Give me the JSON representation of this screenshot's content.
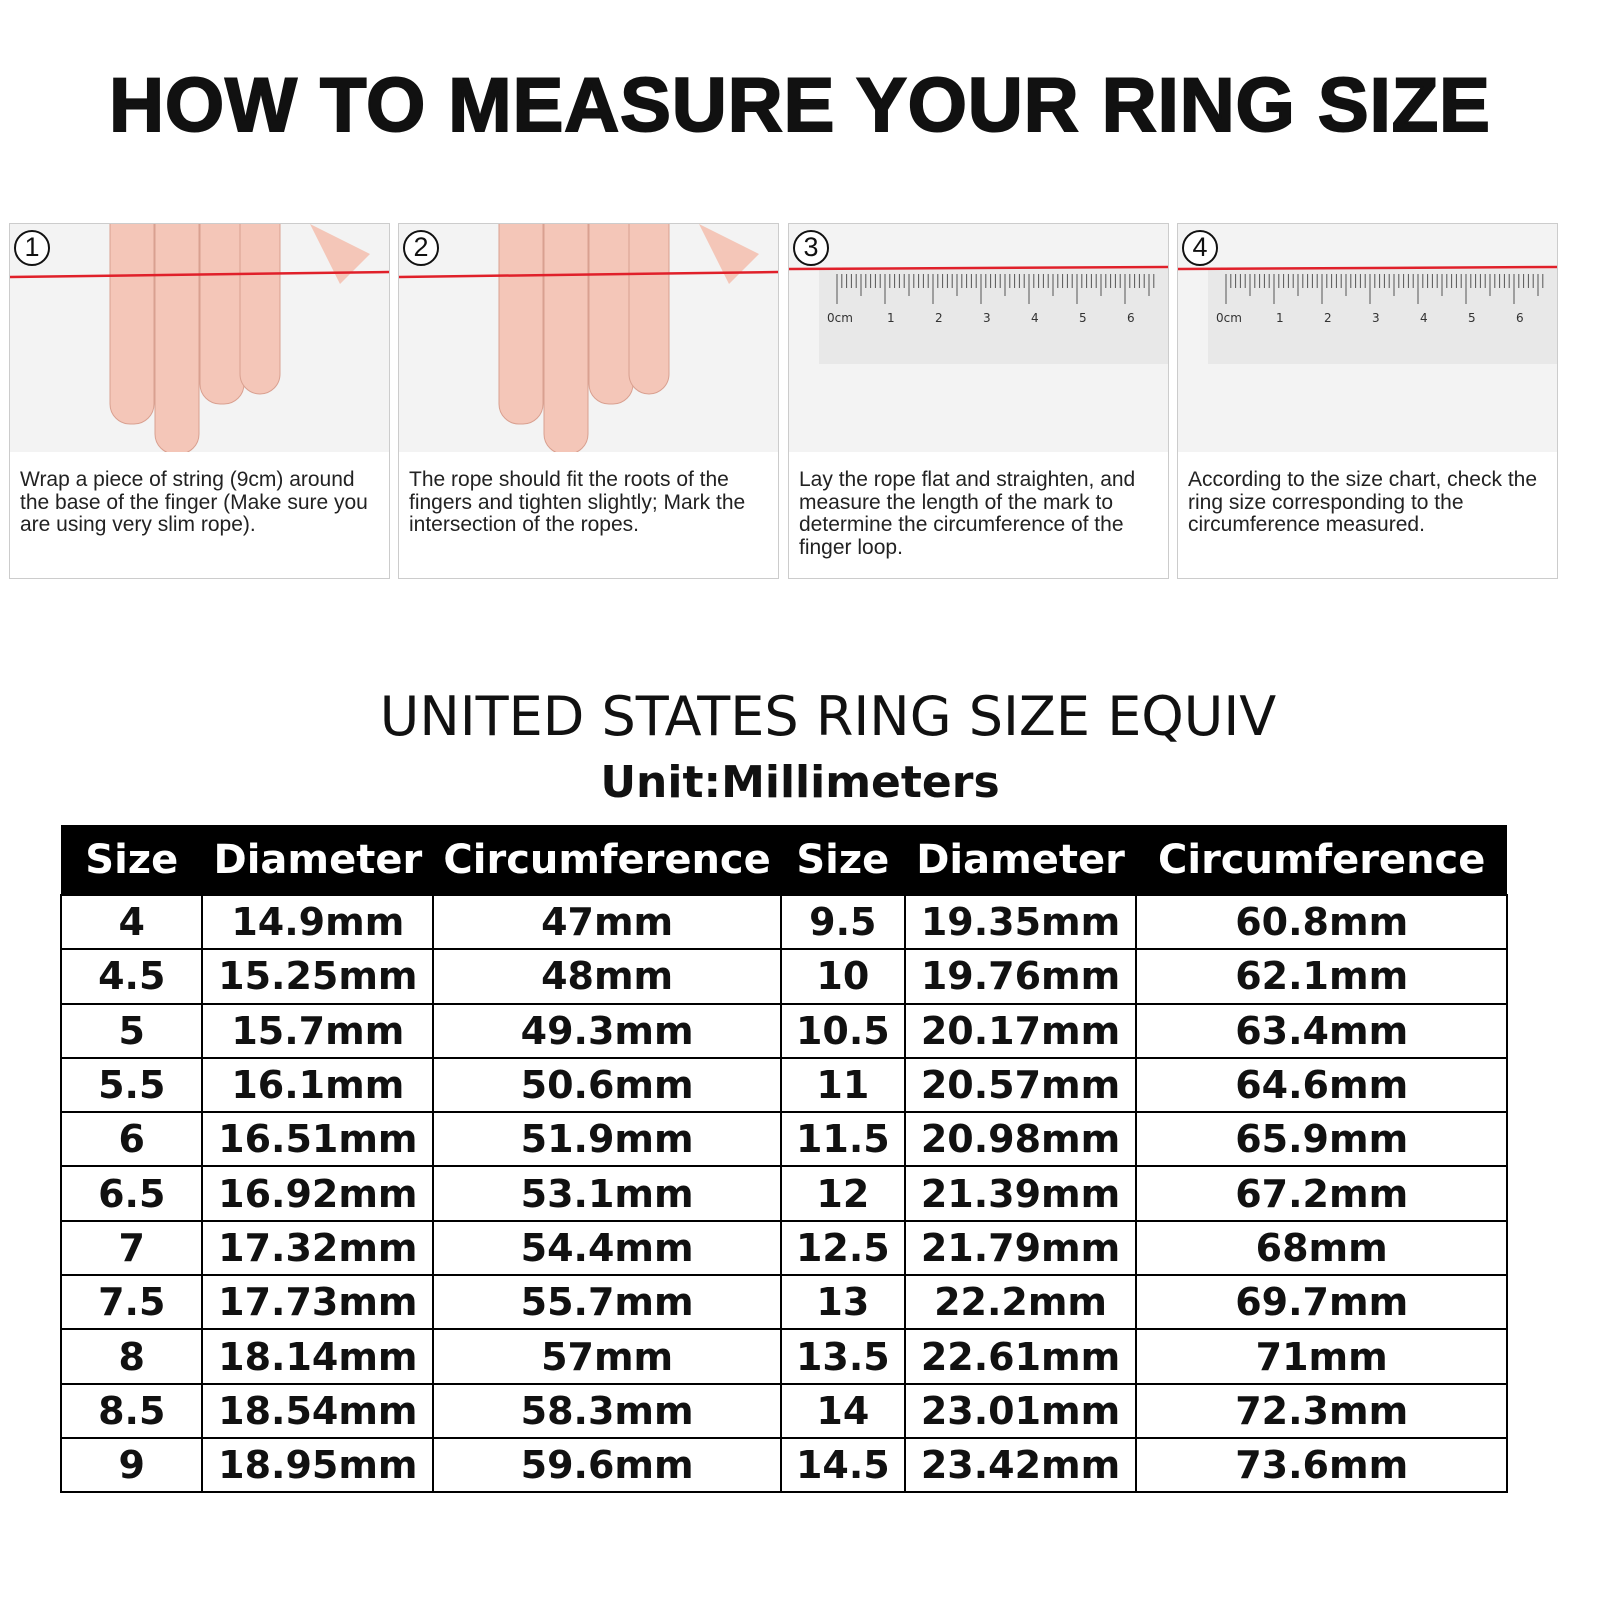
{
  "title": "HOW TO MEASURE YOUR RING SIZE",
  "steps": [
    {
      "number": "1",
      "text": "Wrap a piece of string (9cm) around the base of the finger (Make sure you are using very slim rope)."
    },
    {
      "number": "2",
      "text": "The rope should fit the roots of the fingers and tighten slightly; Mark the intersection of the ropes."
    },
    {
      "number": "3",
      "text": "Lay the rope flat and straighten, and measure the length of the mark to determine the circumference of the finger loop."
    },
    {
      "number": "4",
      "text": "According to the size chart, check the ring size corresponding to the circumference measured."
    }
  ],
  "ruler_labels": [
    "0cm",
    "1",
    "2",
    "3",
    "4",
    "5",
    "6"
  ],
  "chart_title": "UNITED STATES RING SIZE EQUIV",
  "unit": "Unit:Millimeters",
  "headers": [
    "Size",
    "Diameter",
    "Circumference",
    "Size",
    "Diameter",
    "Circumference"
  ],
  "rows": [
    [
      "4",
      "14.9mm",
      "47mm",
      "9.5",
      "19.35mm",
      "60.8mm"
    ],
    [
      "4.5",
      "15.25mm",
      "48mm",
      "10",
      "19.76mm",
      "62.1mm"
    ],
    [
      "5",
      "15.7mm",
      "49.3mm",
      "10.5",
      "20.17mm",
      "63.4mm"
    ],
    [
      "5.5",
      "16.1mm",
      "50.6mm",
      "11",
      "20.57mm",
      "64.6mm"
    ],
    [
      "6",
      "16.51mm",
      "51.9mm",
      "11.5",
      "20.98mm",
      "65.9mm"
    ],
    [
      "6.5",
      "16.92mm",
      "53.1mm",
      "12",
      "21.39mm",
      "67.2mm"
    ],
    [
      "7",
      "17.32mm",
      "54.4mm",
      "12.5",
      "21.79mm",
      "68mm"
    ],
    [
      "7.5",
      "17.73mm",
      "55.7mm",
      "13",
      "22.2mm",
      "69.7mm"
    ],
    [
      "8",
      "18.14mm",
      "57mm",
      "13.5",
      "22.61mm",
      "71mm"
    ],
    [
      "8.5",
      "18.54mm",
      "58.3mm",
      "14",
      "23.01mm",
      "72.3mm"
    ],
    [
      "9",
      "18.95mm",
      "59.6mm",
      "14.5",
      "23.42mm",
      "73.6mm"
    ]
  ],
  "colors": {
    "string": "#e0202a",
    "skin": "#f4c6b8"
  }
}
